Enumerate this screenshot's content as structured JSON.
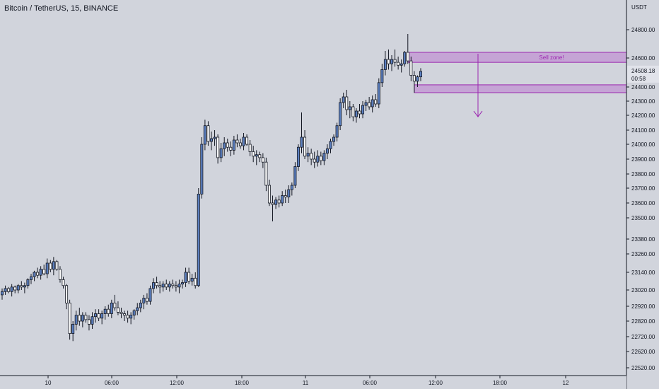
{
  "header": {
    "symbol_title": "Bitcoin / TetherUS, 15, BINANCE"
  },
  "price_axis": {
    "currency": "USDT",
    "ticks": [
      "24800.00",
      "24600.00",
      "24400.00",
      "24300.00",
      "24200.00",
      "24100.00",
      "24000.00",
      "23900.00",
      "23800.00",
      "23700.00",
      "23600.00",
      "23500.00",
      "23380.00",
      "23260.00",
      "23140.00",
      "23020.00",
      "22920.00",
      "22820.00",
      "22720.00",
      "22620.00",
      "22520.00"
    ],
    "last_price": "24508.18",
    "countdown": "00:58"
  },
  "time_axis": {
    "ticks": [
      "10",
      "06:00",
      "12:00",
      "18:00",
      "11",
      "06:00",
      "12:00",
      "18:00",
      "12"
    ]
  },
  "annotations": {
    "sell_zone_label": "Sell zone!"
  },
  "colors": {
    "background": "#d1d4dc",
    "up_candle": "#5b7fc0",
    "down_candle": "#ffffff",
    "wick": "#131722",
    "zone_fill": "#c39bd3",
    "zone_border": "#9c27b0",
    "zone_text": "#9c27b0",
    "price_tag": "#e1e3ea"
  },
  "chart_data": {
    "type": "candlestick",
    "title": "Bitcoin / TetherUS, 15, BINANCE",
    "y_unit": "USDT",
    "x": [
      "10",
      "06:00",
      "12:00",
      "18:00",
      "11",
      "06:00",
      "12:00",
      "18:00",
      "12"
    ],
    "candles": [
      [
        22990,
        23030,
        22960,
        23010
      ],
      [
        23010,
        23050,
        22990,
        23030
      ],
      [
        23030,
        23040,
        23000,
        23010
      ],
      [
        23010,
        23060,
        22980,
        23040
      ],
      [
        23040,
        23050,
        23000,
        23020
      ],
      [
        23020,
        23060,
        23000,
        23050
      ],
      [
        23050,
        23080,
        23020,
        23040
      ],
      [
        23040,
        23070,
        23000,
        23050
      ],
      [
        23050,
        23100,
        23030,
        23090
      ],
      [
        23090,
        23130,
        23060,
        23110
      ],
      [
        23110,
        23150,
        23080,
        23140
      ],
      [
        23140,
        23170,
        23100,
        23120
      ],
      [
        23120,
        23180,
        23090,
        23160
      ],
      [
        23160,
        23190,
        23120,
        23130
      ],
      [
        23130,
        23230,
        23100,
        23200
      ],
      [
        23200,
        23220,
        23140,
        23160
      ],
      [
        23160,
        23240,
        23120,
        23210
      ],
      [
        23210,
        23220,
        23150,
        23160
      ],
      [
        23160,
        23180,
        23070,
        23090
      ],
      [
        23090,
        23110,
        23030,
        23050
      ],
      [
        23050,
        23060,
        22900,
        22940
      ],
      [
        22940,
        22960,
        22700,
        22740
      ],
      [
        22740,
        22820,
        22690,
        22800
      ],
      [
        22800,
        22890,
        22760,
        22860
      ],
      [
        22860,
        22910,
        22790,
        22820
      ],
      [
        22820,
        22880,
        22780,
        22860
      ],
      [
        22860,
        22880,
        22810,
        22830
      ],
      [
        22830,
        22860,
        22760,
        22800
      ],
      [
        22800,
        22880,
        22770,
        22850
      ],
      [
        22850,
        22900,
        22810,
        22870
      ],
      [
        22870,
        22900,
        22820,
        22840
      ],
      [
        22840,
        22890,
        22800,
        22870
      ],
      [
        22870,
        22920,
        22830,
        22900
      ],
      [
        22900,
        22930,
        22850,
        22870
      ],
      [
        22870,
        22960,
        22840,
        22940
      ],
      [
        22940,
        22990,
        22890,
        22910
      ],
      [
        22910,
        22950,
        22860,
        22880
      ],
      [
        22880,
        22910,
        22840,
        22870
      ],
      [
        22870,
        22890,
        22820,
        22860
      ],
      [
        22860,
        22890,
        22810,
        22840
      ],
      [
        22840,
        22880,
        22800,
        22860
      ],
      [
        22860,
        22900,
        22830,
        22890
      ],
      [
        22890,
        22940,
        22860,
        22910
      ],
      [
        22910,
        22960,
        22880,
        22940
      ],
      [
        22940,
        22990,
        22900,
        22970
      ],
      [
        22970,
        23000,
        22930,
        22950
      ],
      [
        22950,
        23050,
        22930,
        23030
      ],
      [
        23030,
        23100,
        23000,
        23070
      ],
      [
        23070,
        23110,
        23030,
        23050
      ],
      [
        23050,
        23080,
        23000,
        23040
      ],
      [
        23040,
        23080,
        23010,
        23060
      ],
      [
        23060,
        23090,
        23020,
        23040
      ],
      [
        23040,
        23080,
        23010,
        23060
      ],
      [
        23060,
        23090,
        23030,
        23050
      ],
      [
        23050,
        23080,
        23010,
        23040
      ],
      [
        23040,
        23090,
        23000,
        23060
      ],
      [
        23060,
        23090,
        23030,
        23070
      ],
      [
        23070,
        23170,
        23040,
        23140
      ],
      [
        23140,
        23170,
        23060,
        23080
      ],
      [
        23080,
        23130,
        23050,
        23100
      ],
      [
        23100,
        23140,
        23030,
        23050
      ],
      [
        23050,
        23700,
        23040,
        23660
      ],
      [
        23660,
        24050,
        23630,
        24000
      ],
      [
        24000,
        24170,
        23960,
        24130
      ],
      [
        24130,
        24160,
        23990,
        24020
      ],
      [
        24020,
        24090,
        23960,
        24040
      ],
      [
        24040,
        24100,
        23990,
        24050
      ],
      [
        24050,
        24070,
        23870,
        23910
      ],
      [
        23910,
        24010,
        23880,
        23970
      ],
      [
        23970,
        24050,
        23920,
        24010
      ],
      [
        24010,
        24040,
        23950,
        23980
      ],
      [
        23980,
        24020,
        23920,
        23960
      ],
      [
        23960,
        24060,
        23930,
        24030
      ],
      [
        24030,
        24070,
        23980,
        24010
      ],
      [
        24010,
        24040,
        23970,
        23990
      ],
      [
        23990,
        24080,
        23960,
        24050
      ],
      [
        24050,
        24070,
        23990,
        24000
      ],
      [
        24000,
        24030,
        23920,
        23950
      ],
      [
        23950,
        23990,
        23880,
        23920
      ],
      [
        23920,
        23960,
        23860,
        23930
      ],
      [
        23930,
        23950,
        23880,
        23910
      ],
      [
        23910,
        23940,
        23840,
        23880
      ],
      [
        23880,
        23910,
        23680,
        23720
      ],
      [
        23720,
        23760,
        23580,
        23600
      ],
      [
        23600,
        23650,
        23480,
        23590
      ],
      [
        23590,
        23640,
        23560,
        23620
      ],
      [
        23620,
        23650,
        23570,
        23600
      ],
      [
        23600,
        23680,
        23580,
        23650
      ],
      [
        23650,
        23690,
        23600,
        23640
      ],
      [
        23640,
        23720,
        23600,
        23690
      ],
      [
        23690,
        23740,
        23650,
        23720
      ],
      [
        23720,
        23880,
        23700,
        23850
      ],
      [
        23850,
        24000,
        23820,
        23980
      ],
      [
        23980,
        24220,
        23940,
        24050
      ],
      [
        24050,
        24100,
        23900,
        23920
      ],
      [
        23920,
        23980,
        23880,
        23940
      ],
      [
        23940,
        23970,
        23860,
        23900
      ],
      [
        23900,
        23950,
        23840,
        23880
      ],
      [
        23880,
        23960,
        23850,
        23920
      ],
      [
        23920,
        23950,
        23860,
        23890
      ],
      [
        23890,
        23960,
        23860,
        23940
      ],
      [
        23940,
        24000,
        23900,
        23970
      ],
      [
        23970,
        24040,
        23940,
        24020
      ],
      [
        24020,
        24070,
        23990,
        24050
      ],
      [
        24050,
        24150,
        24020,
        24130
      ],
      [
        24130,
        24320,
        24100,
        24290
      ],
      [
        24290,
        24360,
        24250,
        24330
      ],
      [
        24330,
        24380,
        24200,
        24240
      ],
      [
        24240,
        24300,
        24180,
        24260
      ],
      [
        24260,
        24280,
        24160,
        24190
      ],
      [
        24190,
        24250,
        24150,
        24230
      ],
      [
        24230,
        24280,
        24180,
        24210
      ],
      [
        24210,
        24300,
        24180,
        24270
      ],
      [
        24270,
        24310,
        24230,
        24290
      ],
      [
        24290,
        24330,
        24240,
        24260
      ],
      [
        24260,
        24340,
        24220,
        24310
      ],
      [
        24310,
        24350,
        24260,
        24280
      ],
      [
        24280,
        24460,
        24250,
        24430
      ],
      [
        24430,
        24560,
        24400,
        24520
      ],
      [
        24520,
        24650,
        24480,
        24590
      ],
      [
        24590,
        24660,
        24520,
        24560
      ],
      [
        24560,
        24620,
        24510,
        24590
      ],
      [
        24590,
        24660,
        24540,
        24570
      ],
      [
        24570,
        24610,
        24520,
        24550
      ],
      [
        24550,
        24590,
        24500,
        24560
      ],
      [
        24560,
        24650,
        24540,
        24640
      ],
      [
        24640,
        24770,
        24560,
        24580
      ],
      [
        24580,
        24610,
        24440,
        24480
      ],
      [
        24480,
        24510,
        24360,
        24440
      ],
      [
        24440,
        24480,
        24400,
        24470
      ],
      [
        24470,
        24530,
        24440,
        24508
      ]
    ],
    "zones": [
      {
        "label": "Sell zone!",
        "from": 24570,
        "to": 24640
      },
      {
        "label": "",
        "from": 24360,
        "to": 24415
      }
    ],
    "ylim": [
      22470,
      24920
    ],
    "grid": false,
    "legend": "none"
  }
}
